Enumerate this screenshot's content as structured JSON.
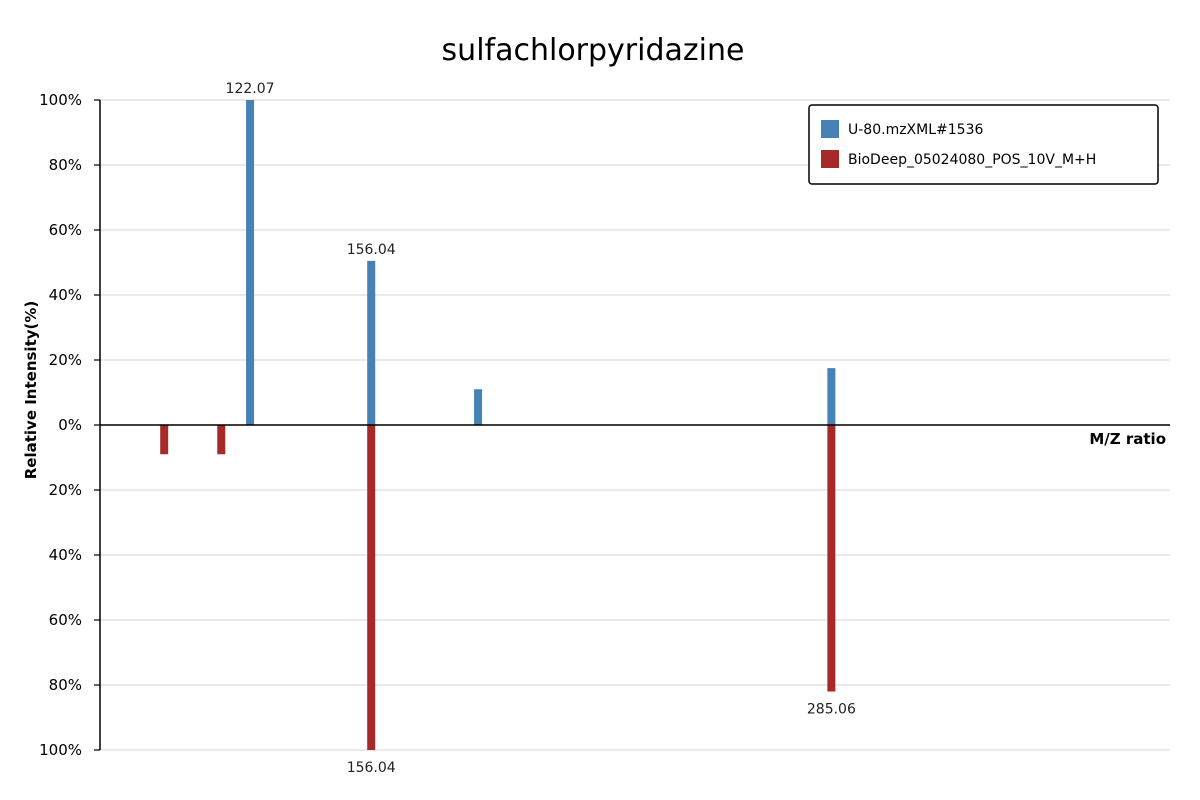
{
  "chart_data": {
    "type": "bar",
    "subtype": "mirror-mass-spectrum",
    "title": "sulfachlorpyridazine",
    "xlabel": "M/Z ratio",
    "ylabel": "Relative Intensity(%)",
    "ylim": [
      -100,
      100
    ],
    "y_ticks": [
      "100%",
      "80%",
      "60%",
      "40%",
      "20%",
      "0%",
      "20%",
      "40%",
      "60%",
      "80%",
      "100%"
    ],
    "x_range": [
      80,
      380
    ],
    "grid": true,
    "legend_position": "top-right",
    "series": [
      {
        "name": "U-80.mzXML#1536",
        "color": "#4682b4",
        "direction": "up",
        "peaks": [
          {
            "mz": 122.07,
            "intensity": 100,
            "label": "122.07"
          },
          {
            "mz": 156.04,
            "intensity": 50.5,
            "label": "156.04"
          },
          {
            "mz": 186.0,
            "intensity": 11,
            "label": ""
          },
          {
            "mz": 285.06,
            "intensity": 17.5,
            "label": ""
          }
        ]
      },
      {
        "name": "BioDeep_05024080_POS_10V_M+H",
        "color": "#a52a2a",
        "direction": "down",
        "peaks": [
          {
            "mz": 98.0,
            "intensity": 9,
            "label": ""
          },
          {
            "mz": 114.0,
            "intensity": 9,
            "label": ""
          },
          {
            "mz": 156.04,
            "intensity": 100,
            "label": "156.04"
          },
          {
            "mz": 285.06,
            "intensity": 82,
            "label": "285.06"
          }
        ]
      }
    ]
  }
}
